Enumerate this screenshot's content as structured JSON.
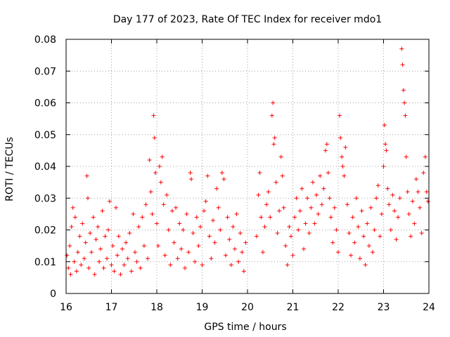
{
  "chart_data": {
    "type": "scatter",
    "title": "Day 177 of 2023, Rate Of TEC Index for receiver mdo1",
    "xlabel": "GPS time / hours",
    "ylabel": "ROTI / TECUs",
    "xlim": [
      16,
      24
    ],
    "ylim": [
      0,
      0.08
    ],
    "x_ticks": [
      16,
      17,
      18,
      19,
      20,
      21,
      22,
      23,
      24
    ],
    "x_tick_labels": [
      "16",
      "17",
      "18",
      "19",
      "20",
      "21",
      "22",
      "23",
      "24"
    ],
    "y_ticks": [
      0,
      0.01,
      0.02,
      0.03,
      0.04,
      0.05,
      0.06,
      0.07,
      0.08
    ],
    "y_tick_labels": [
      "0",
      "0.01",
      "0.02",
      "0.03",
      "0.04",
      "0.05",
      "0.06",
      "0.07",
      "0.08"
    ],
    "grid": true,
    "marker": "+",
    "color": "#ff0000",
    "series": [
      {
        "name": "ROTI",
        "points": [
          [
            16.02,
            0.012
          ],
          [
            16.05,
            0.008
          ],
          [
            16.08,
            0.015
          ],
          [
            16.1,
            0.006
          ],
          [
            16.12,
            0.021
          ],
          [
            16.15,
            0.027
          ],
          [
            16.18,
            0.01
          ],
          [
            16.2,
            0.024
          ],
          [
            16.23,
            0.007
          ],
          [
            16.26,
            0.013
          ],
          [
            16.3,
            0.018
          ],
          [
            16.33,
            0.009
          ],
          [
            16.36,
            0.022
          ],
          [
            16.4,
            0.011
          ],
          [
            16.43,
            0.016
          ],
          [
            16.46,
            0.037
          ],
          [
            16.48,
            0.03
          ],
          [
            16.5,
            0.008
          ],
          [
            16.53,
            0.019
          ],
          [
            16.56,
            0.013
          ],
          [
            16.6,
            0.024
          ],
          [
            16.63,
            0.006
          ],
          [
            16.66,
            0.017
          ],
          [
            16.7,
            0.021
          ],
          [
            16.73,
            0.01
          ],
          [
            16.76,
            0.014
          ],
          [
            16.8,
            0.026
          ],
          [
            16.83,
            0.008
          ],
          [
            16.86,
            0.018
          ],
          [
            16.9,
            0.011
          ],
          [
            16.93,
            0.02
          ],
          [
            16.96,
            0.029
          ],
          [
            17.0,
            0.009
          ],
          [
            17.03,
            0.015
          ],
          [
            17.06,
            0.007
          ],
          [
            17.1,
            0.027
          ],
          [
            17.13,
            0.012
          ],
          [
            17.16,
            0.018
          ],
          [
            17.2,
            0.006
          ],
          [
            17.24,
            0.014
          ],
          [
            17.28,
            0.009
          ],
          [
            17.32,
            0.016
          ],
          [
            17.36,
            0.011
          ],
          [
            17.4,
            0.019
          ],
          [
            17.44,
            0.007
          ],
          [
            17.48,
            0.025
          ],
          [
            17.52,
            0.013
          ],
          [
            17.56,
            0.01
          ],
          [
            17.6,
            0.021
          ],
          [
            17.64,
            0.008
          ],
          [
            17.68,
            0.024
          ],
          [
            17.72,
            0.015
          ],
          [
            17.76,
            0.028
          ],
          [
            17.8,
            0.011
          ],
          [
            17.84,
            0.042
          ],
          [
            17.87,
            0.032
          ],
          [
            17.9,
            0.025
          ],
          [
            17.93,
            0.056
          ],
          [
            17.95,
            0.049
          ],
          [
            17.97,
            0.038
          ],
          [
            18.0,
            0.022
          ],
          [
            18.03,
            0.015
          ],
          [
            18.06,
            0.04
          ],
          [
            18.09,
            0.035
          ],
          [
            18.12,
            0.043
          ],
          [
            18.15,
            0.028
          ],
          [
            18.18,
            0.012
          ],
          [
            18.22,
            0.031
          ],
          [
            18.26,
            0.02
          ],
          [
            18.3,
            0.009
          ],
          [
            18.34,
            0.026
          ],
          [
            18.38,
            0.016
          ],
          [
            18.42,
            0.027
          ],
          [
            18.46,
            0.011
          ],
          [
            18.5,
            0.022
          ],
          [
            18.54,
            0.014
          ],
          [
            18.58,
            0.02
          ],
          [
            18.62,
            0.008
          ],
          [
            18.66,
            0.025
          ],
          [
            18.7,
            0.013
          ],
          [
            18.74,
            0.038
          ],
          [
            18.76,
            0.036
          ],
          [
            18.8,
            0.019
          ],
          [
            18.84,
            0.01
          ],
          [
            18.88,
            0.024
          ],
          [
            18.92,
            0.015
          ],
          [
            18.96,
            0.021
          ],
          [
            19.0,
            0.009
          ],
          [
            19.04,
            0.026
          ],
          [
            19.08,
            0.029
          ],
          [
            19.12,
            0.037
          ],
          [
            19.16,
            0.018
          ],
          [
            19.2,
            0.011
          ],
          [
            19.24,
            0.023
          ],
          [
            19.28,
            0.016
          ],
          [
            19.32,
            0.033
          ],
          [
            19.36,
            0.027
          ],
          [
            19.4,
            0.02
          ],
          [
            19.44,
            0.038
          ],
          [
            19.48,
            0.036
          ],
          [
            19.52,
            0.012
          ],
          [
            19.56,
            0.024
          ],
          [
            19.6,
            0.017
          ],
          [
            19.64,
            0.009
          ],
          [
            19.68,
            0.021
          ],
          [
            19.72,
            0.014
          ],
          [
            19.76,
            0.025
          ],
          [
            19.8,
            0.01
          ],
          [
            19.84,
            0.019
          ],
          [
            19.88,
            0.013
          ],
          [
            19.92,
            0.007
          ],
          [
            19.96,
            0.016
          ],
          [
            20.2,
            0.018
          ],
          [
            20.24,
            0.031
          ],
          [
            20.27,
            0.038
          ],
          [
            20.3,
            0.024
          ],
          [
            20.34,
            0.013
          ],
          [
            20.38,
            0.021
          ],
          [
            20.42,
            0.028
          ],
          [
            20.46,
            0.032
          ],
          [
            20.5,
            0.024
          ],
          [
            20.54,
            0.056
          ],
          [
            20.56,
            0.06
          ],
          [
            20.58,
            0.047
          ],
          [
            20.6,
            0.049
          ],
          [
            20.63,
            0.035
          ],
          [
            20.66,
            0.019
          ],
          [
            20.7,
            0.026
          ],
          [
            20.74,
            0.043
          ],
          [
            20.77,
            0.037
          ],
          [
            20.8,
            0.027
          ],
          [
            20.84,
            0.015
          ],
          [
            20.88,
            0.009
          ],
          [
            20.92,
            0.021
          ],
          [
            20.96,
            0.018
          ],
          [
            21.0,
            0.012
          ],
          [
            21.04,
            0.024
          ],
          [
            21.08,
            0.03
          ],
          [
            21.12,
            0.02
          ],
          [
            21.16,
            0.026
          ],
          [
            21.2,
            0.033
          ],
          [
            21.24,
            0.014
          ],
          [
            21.28,
            0.022
          ],
          [
            21.32,
            0.03
          ],
          [
            21.36,
            0.019
          ],
          [
            21.4,
            0.027
          ],
          [
            21.44,
            0.035
          ],
          [
            21.48,
            0.022
          ],
          [
            21.52,
            0.031
          ],
          [
            21.56,
            0.025
          ],
          [
            21.6,
            0.037
          ],
          [
            21.64,
            0.028
          ],
          [
            21.68,
            0.033
          ],
          [
            21.72,
            0.045
          ],
          [
            21.75,
            0.047
          ],
          [
            21.78,
            0.038
          ],
          [
            21.81,
            0.03
          ],
          [
            21.84,
            0.024
          ],
          [
            21.88,
            0.016
          ],
          [
            21.92,
            0.027
          ],
          [
            21.96,
            0.02
          ],
          [
            22.0,
            0.013
          ],
          [
            22.03,
            0.056
          ],
          [
            22.05,
            0.049
          ],
          [
            22.08,
            0.043
          ],
          [
            22.1,
            0.04
          ],
          [
            22.13,
            0.037
          ],
          [
            22.16,
            0.046
          ],
          [
            22.2,
            0.028
          ],
          [
            22.24,
            0.019
          ],
          [
            22.28,
            0.012
          ],
          [
            22.32,
            0.024
          ],
          [
            22.36,
            0.016
          ],
          [
            22.4,
            0.03
          ],
          [
            22.44,
            0.021
          ],
          [
            22.48,
            0.011
          ],
          [
            22.52,
            0.026
          ],
          [
            22.56,
            0.018
          ],
          [
            22.6,
            0.009
          ],
          [
            22.64,
            0.022
          ],
          [
            22.68,
            0.015
          ],
          [
            22.72,
            0.027
          ],
          [
            22.76,
            0.013
          ],
          [
            22.8,
            0.02
          ],
          [
            22.84,
            0.03
          ],
          [
            22.88,
            0.034
          ],
          [
            22.92,
            0.018
          ],
          [
            22.96,
            0.025
          ],
          [
            23.0,
            0.04
          ],
          [
            23.02,
            0.053
          ],
          [
            23.04,
            0.047
          ],
          [
            23.06,
            0.045
          ],
          [
            23.09,
            0.033
          ],
          [
            23.12,
            0.028
          ],
          [
            23.16,
            0.02
          ],
          [
            23.2,
            0.031
          ],
          [
            23.24,
            0.026
          ],
          [
            23.28,
            0.017
          ],
          [
            23.32,
            0.024
          ],
          [
            23.36,
            0.03
          ],
          [
            23.4,
            0.077
          ],
          [
            23.42,
            0.072
          ],
          [
            23.44,
            0.064
          ],
          [
            23.46,
            0.06
          ],
          [
            23.48,
            0.056
          ],
          [
            23.5,
            0.043
          ],
          [
            23.53,
            0.032
          ],
          [
            23.56,
            0.025
          ],
          [
            23.6,
            0.018
          ],
          [
            23.64,
            0.029
          ],
          [
            23.68,
            0.022
          ],
          [
            23.72,
            0.036
          ],
          [
            23.76,
            0.032
          ],
          [
            23.8,
            0.027
          ],
          [
            23.84,
            0.019
          ],
          [
            23.88,
            0.038
          ],
          [
            23.92,
            0.043
          ],
          [
            23.95,
            0.032
          ],
          [
            23.98,
            0.029
          ]
        ]
      }
    ]
  }
}
